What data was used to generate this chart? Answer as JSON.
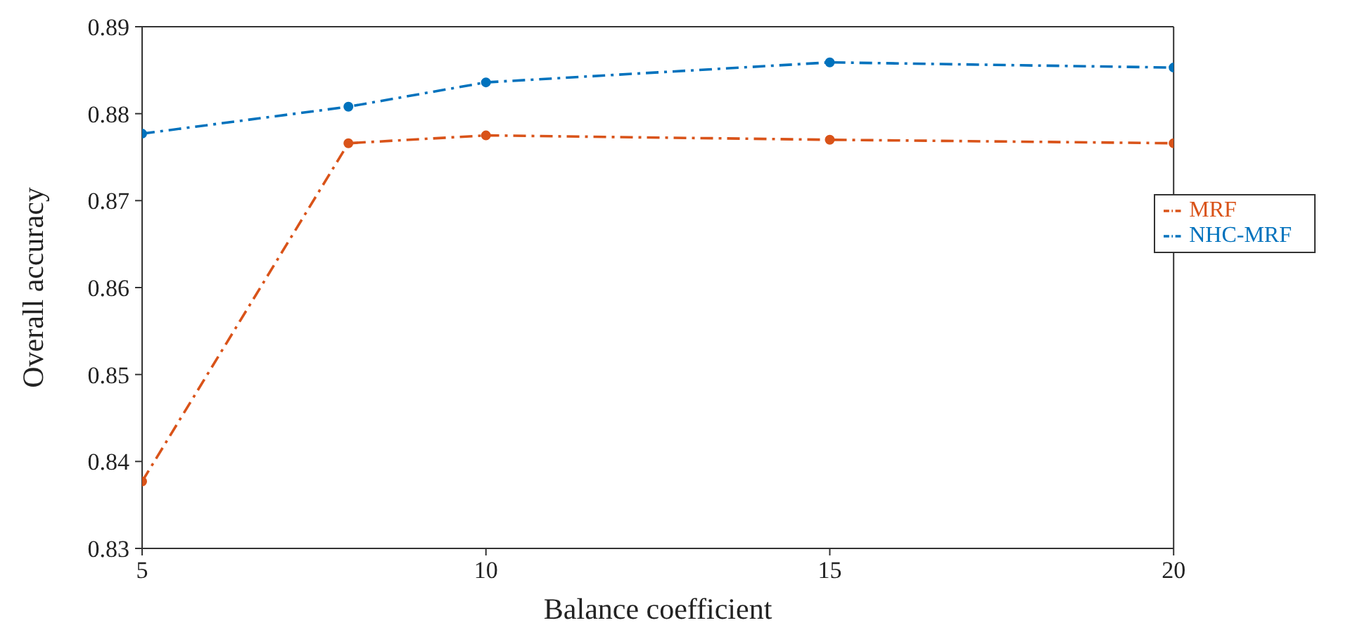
{
  "chart_data": {
    "type": "line",
    "xlabel": "Balance coefficient",
    "ylabel": "Overall accuracy",
    "x": [
      5,
      8,
      10,
      15,
      20
    ],
    "series": [
      {
        "name": "NHC-MRF",
        "color": "#0072bd",
        "values": [
          0.8777,
          0.8808,
          0.8836,
          0.8859,
          0.8853
        ]
      },
      {
        "name": "MRF",
        "color": "#d95319",
        "values": [
          0.8377,
          0.8766,
          0.8775,
          0.877,
          0.8766
        ]
      }
    ],
    "xlim": [
      5,
      20
    ],
    "xticks": [
      5,
      10,
      15,
      20
    ],
    "ylim": [
      0.83,
      0.89
    ],
    "yticks": [
      0.83,
      0.84,
      0.85,
      0.86,
      0.87,
      0.88,
      0.89
    ],
    "grid": false,
    "legend": "right",
    "marker": "circle",
    "line_style": "dashed"
  }
}
